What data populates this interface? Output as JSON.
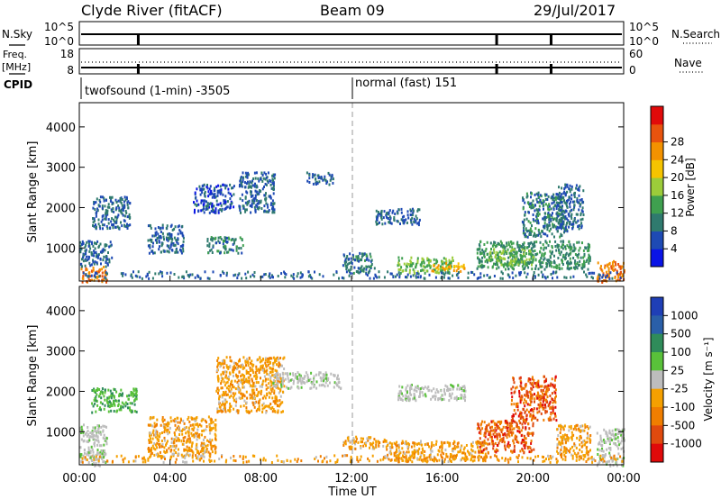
{
  "header": {
    "station": "Clyde River (fitACF)",
    "beam": "Beam 09",
    "date": "29/Jul/2017"
  },
  "status_panels": {
    "nsky_label": "N.Sky",
    "nsky_ticks": [
      "10^5",
      "10^0"
    ],
    "nsearch_label": "N.Search",
    "nsearch_ticks": [
      "10^5",
      "10^0"
    ],
    "freq_label": "Freq.",
    "freq_unit": "[MHz]",
    "freq_ticks": [
      "18",
      "8"
    ],
    "nave_label": "Nave",
    "nave_ticks": [
      "60",
      "0"
    ],
    "cpid_label": "CPID",
    "cpid_modes": [
      {
        "name": "twofsound (1-min) -3505",
        "start_hour": 0
      },
      {
        "name": "normal (fast) 151",
        "start_hour": 12
      }
    ],
    "data_gaps_hours": [
      2.6,
      18.4,
      20.8
    ]
  },
  "chart_data": [
    {
      "type": "heatmap",
      "title": "Power",
      "ylabel": "Slant Range [km]",
      "xlabel": "",
      "xlim_hours": [
        0,
        24
      ],
      "ylim": [
        180,
        4600
      ],
      "y_ticks": [
        "1000",
        "2000",
        "3000",
        "4000"
      ],
      "x_ticks": [
        "00:00",
        "04:00",
        "08:00",
        "12:00",
        "16:00",
        "20:00",
        "00:00"
      ],
      "colorbar": {
        "label": "Power [dB]",
        "levels": [
          0,
          4,
          8,
          12,
          16,
          20,
          24,
          28,
          32
        ],
        "tick_labels": [
          "4",
          "8",
          "12",
          "16",
          "20",
          "24",
          "28"
        ],
        "colors": [
          "#0a14e6",
          "#1e4ab4",
          "#2f7a6e",
          "#3fa04f",
          "#9ccc3a",
          "#f5c400",
          "#f39200",
          "#e8530e",
          "#e10a0a"
        ]
      },
      "echo_regions": [
        {
          "t": [
            0.0,
            1.2
          ],
          "r": [
            180,
            560
          ],
          "level": 28
        },
        {
          "t": [
            0.0,
            1.4
          ],
          "r": [
            560,
            1200
          ],
          "level": 8
        },
        {
          "t": [
            0.5,
            2.2
          ],
          "r": [
            1500,
            2300
          ],
          "level": 8
        },
        {
          "t": [
            3.0,
            4.6
          ],
          "r": [
            900,
            1600
          ],
          "level": 8
        },
        {
          "t": [
            5.0,
            6.8
          ],
          "r": [
            1900,
            2600
          ],
          "level": 6
        },
        {
          "t": [
            7.0,
            8.6
          ],
          "r": [
            1900,
            2900
          ],
          "level": 8
        },
        {
          "t": [
            5.6,
            7.2
          ],
          "r": [
            900,
            1300
          ],
          "level": 10
        },
        {
          "t": [
            10.0,
            11.2
          ],
          "r": [
            2600,
            2900
          ],
          "level": 8
        },
        {
          "t": [
            11.6,
            13.0
          ],
          "r": [
            400,
            900
          ],
          "level": 10
        },
        {
          "t": [
            13.0,
            15.0
          ],
          "r": [
            1600,
            2000
          ],
          "level": 8
        },
        {
          "t": [
            14.0,
            16.5
          ],
          "r": [
            400,
            800
          ],
          "level": 16
        },
        {
          "t": [
            15.5,
            17.0
          ],
          "r": [
            450,
            650
          ],
          "level": 24
        },
        {
          "t": [
            17.5,
            22.5
          ],
          "r": [
            500,
            1200
          ],
          "level": 12
        },
        {
          "t": [
            18.0,
            20.0
          ],
          "r": [
            600,
            1000
          ],
          "level": 16
        },
        {
          "t": [
            19.5,
            21.5
          ],
          "r": [
            1300,
            2400
          ],
          "level": 10
        },
        {
          "t": [
            21.0,
            22.2
          ],
          "r": [
            1500,
            2600
          ],
          "level": 8
        },
        {
          "t": [
            22.8,
            24.0
          ],
          "r": [
            180,
            700
          ],
          "level": 28
        }
      ]
    },
    {
      "type": "heatmap",
      "title": "Velocity",
      "ylabel": "Slant Range [km]",
      "xlabel": "Time UT",
      "xlim_hours": [
        0,
        24
      ],
      "ylim": [
        180,
        4600
      ],
      "y_ticks": [
        "1000",
        "2000",
        "3000",
        "4000"
      ],
      "x_ticks": [
        "00:00",
        "04:00",
        "08:00",
        "12:00",
        "16:00",
        "20:00",
        "00:00"
      ],
      "colorbar": {
        "label": "Velocity [m s⁻¹]",
        "tick_labels": [
          "1000",
          "500",
          "100",
          "25",
          "-25",
          "-100",
          "-500",
          "-1000"
        ],
        "colors": [
          "#1f3fb6",
          "#2a5fa8",
          "#2f8c5a",
          "#59c13a",
          "#bdbdbd",
          "#f5a000",
          "#f07e00",
          "#e04a0e",
          "#e00a0a"
        ]
      },
      "echo_regions": [
        {
          "t": [
            0.0,
            1.2
          ],
          "r": [
            180,
            1200
          ],
          "class": "ground"
        },
        {
          "t": [
            0.5,
            2.5
          ],
          "r": [
            1500,
            2100
          ],
          "class": "pos"
        },
        {
          "t": [
            3.0,
            6.0
          ],
          "r": [
            400,
            1400
          ],
          "class": "neg"
        },
        {
          "t": [
            6.0,
            9.0
          ],
          "r": [
            1500,
            2900
          ],
          "class": "neg"
        },
        {
          "t": [
            8.5,
            11.5
          ],
          "r": [
            2100,
            2500
          ],
          "class": "ground"
        },
        {
          "t": [
            11.6,
            13.5
          ],
          "r": [
            600,
            900
          ],
          "class": "neg"
        },
        {
          "t": [
            13.5,
            18.0
          ],
          "r": [
            300,
            800
          ],
          "class": "neg"
        },
        {
          "t": [
            14.0,
            17.0
          ],
          "r": [
            1800,
            2200
          ],
          "class": "ground"
        },
        {
          "t": [
            17.5,
            20.0
          ],
          "r": [
            500,
            1300
          ],
          "class": "strongneg"
        },
        {
          "t": [
            19.0,
            21.0
          ],
          "r": [
            1300,
            2400
          ],
          "class": "strongneg"
        },
        {
          "t": [
            21.0,
            22.5
          ],
          "r": [
            400,
            1200
          ],
          "class": "neg"
        },
        {
          "t": [
            22.8,
            24.0
          ],
          "r": [
            180,
            1100
          ],
          "class": "ground"
        }
      ]
    }
  ]
}
